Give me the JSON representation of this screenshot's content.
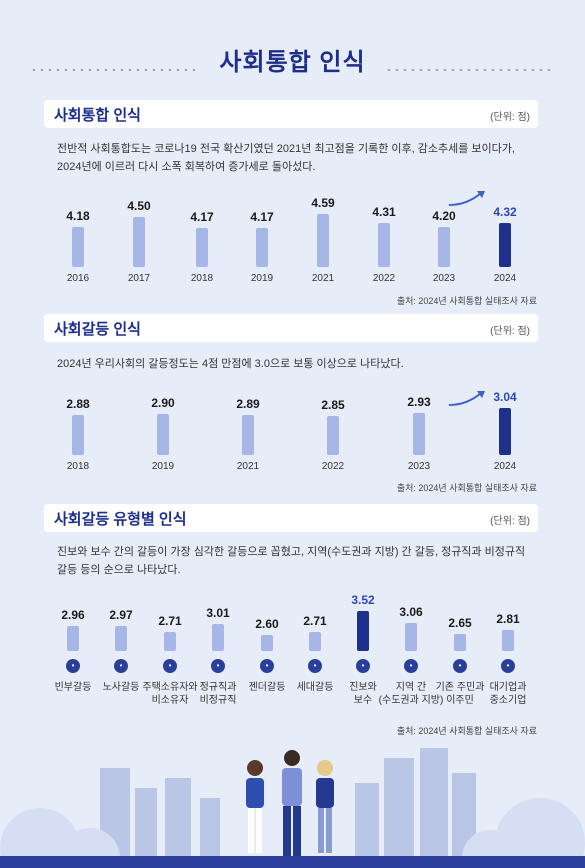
{
  "page_title": "사회통합 인식",
  "colors": {
    "accent": "#1f2f8c",
    "bar": "#a6b6e6",
    "title": "#1d2f8a",
    "background": "#e6edf8"
  },
  "sections": [
    {
      "title": "사회통합 인식",
      "unit": "(단위: 점)",
      "description": "전반적 사회통합도는 코로나19 전국 확산기였던 2021년 최고점을 기록한 이후, 감소추세를 보이다가, 2024년에 이르러 다시 소폭 회복하여 증가세로 돌아섰다.",
      "source": "출처: 2024년 사회통합 실태조사 자료"
    },
    {
      "title": "사회갈등 인식",
      "unit": "(단위: 점)",
      "description": "2024년 우리사회의 갈등정도는 4점 만점에 3.0으로 보통 이상으로 나타났다.",
      "source": "출처: 2024년 사회통합 실태조사 자료"
    },
    {
      "title": "사회갈등 유형별 인식",
      "unit": "(단위: 점)",
      "description": "진보와 보수 간의 갈등이 가장 심각한 갈등으로 꼽혔고, 지역(수도권과 지방) 간 갈등, 정규직과 비정규직 갈등 등의 순으로 나타났다.",
      "source": "출처: 2024년 사회통합 실태조사 자료"
    }
  ],
  "chart_data": [
    {
      "type": "bar",
      "categories": [
        "2016",
        "2017",
        "2018",
        "2019",
        "2021",
        "2022",
        "2023",
        "2024"
      ],
      "values": [
        4.18,
        4.5,
        4.17,
        4.17,
        4.59,
        4.31,
        4.2,
        4.32
      ],
      "value_labels": [
        "4.18",
        "4.50",
        "4.17",
        "4.17",
        "4.59",
        "4.31",
        "4.20",
        "4.32"
      ],
      "highlight_index": 7,
      "ylim": [
        3.0,
        4.7
      ]
    },
    {
      "type": "bar",
      "categories": [
        "2018",
        "2019",
        "2021",
        "2022",
        "2023",
        "2024"
      ],
      "values": [
        2.88,
        2.9,
        2.89,
        2.85,
        2.93,
        3.04
      ],
      "value_labels": [
        "2.88",
        "2.90",
        "2.89",
        "2.85",
        "2.93",
        "3.04"
      ],
      "highlight_index": 5,
      "ylim": [
        2.0,
        3.1
      ]
    },
    {
      "type": "bar",
      "categories": [
        [
          "빈부갈등"
        ],
        [
          "노사갈등"
        ],
        [
          "주택소유자와",
          "비소유자"
        ],
        [
          "정규직과",
          "비정규직"
        ],
        [
          "젠더갈등"
        ],
        [
          "세대갈등"
        ],
        [
          "진보와",
          "보수"
        ],
        [
          "지역 간",
          "(수도권과 지방)"
        ],
        [
          "기존 주민과",
          "이주민"
        ],
        [
          "대기업과",
          "중소기업"
        ]
      ],
      "values": [
        2.96,
        2.97,
        2.71,
        3.01,
        2.6,
        2.71,
        3.52,
        3.06,
        2.65,
        2.81
      ],
      "value_labels": [
        "2.96",
        "2.97",
        "2.71",
        "3.01",
        "2.60",
        "2.71",
        "3.52",
        "3.06",
        "2.65",
        "2.81"
      ],
      "icons": [
        "money-icon",
        "handshake-icon",
        "house-icon",
        "briefcase-icon",
        "person-icon",
        "people-icon",
        "building-icon",
        "location-pin-icon",
        "globe-icon",
        "factory-icon"
      ],
      "highlight_index": 6,
      "ylim": [
        2.0,
        3.6
      ]
    }
  ]
}
